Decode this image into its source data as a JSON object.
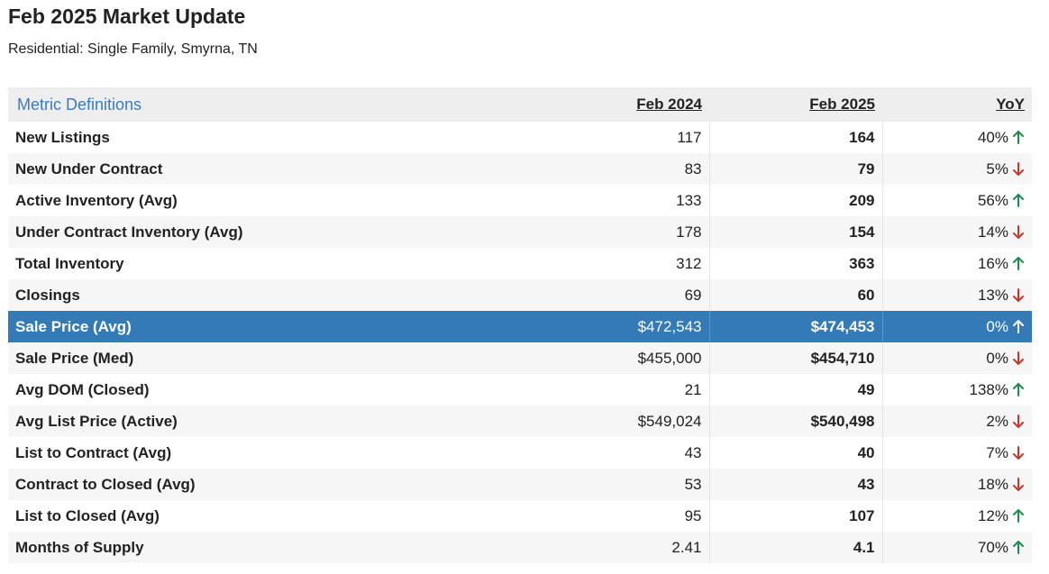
{
  "header": {
    "title": "Feb 2025 Market Update",
    "subtitle": "Residential: Single Family, Smyrna, TN"
  },
  "colors": {
    "up": "#1e8a4c",
    "down": "#c0392b",
    "highlight": "#337ab7",
    "link": "#3a7cc0"
  },
  "table": {
    "metric_definitions_label": "Metric Definitions",
    "columns": [
      "Feb 2024",
      "Feb 2025",
      "YoY"
    ],
    "rows": [
      {
        "metric": "New Listings",
        "prev": "117",
        "curr": "164",
        "yoy": "40%",
        "dir": "up"
      },
      {
        "metric": "New Under Contract",
        "prev": "83",
        "curr": "79",
        "yoy": "5%",
        "dir": "down"
      },
      {
        "metric": "Active Inventory (Avg)",
        "prev": "133",
        "curr": "209",
        "yoy": "56%",
        "dir": "up"
      },
      {
        "metric": "Under Contract Inventory (Avg)",
        "prev": "178",
        "curr": "154",
        "yoy": "14%",
        "dir": "down"
      },
      {
        "metric": "Total Inventory",
        "prev": "312",
        "curr": "363",
        "yoy": "16%",
        "dir": "up"
      },
      {
        "metric": "Closings",
        "prev": "69",
        "curr": "60",
        "yoy": "13%",
        "dir": "down"
      },
      {
        "metric": "Sale Price (Avg)",
        "prev": "$472,543",
        "curr": "$474,453",
        "yoy": "0%",
        "dir": "up",
        "highlight": true
      },
      {
        "metric": "Sale Price (Med)",
        "prev": "$455,000",
        "curr": "$454,710",
        "yoy": "0%",
        "dir": "down"
      },
      {
        "metric": "Avg DOM (Closed)",
        "prev": "21",
        "curr": "49",
        "yoy": "138%",
        "dir": "up"
      },
      {
        "metric": "Avg List Price (Active)",
        "prev": "$549,024",
        "curr": "$540,498",
        "yoy": "2%",
        "dir": "down"
      },
      {
        "metric": "List to Contract (Avg)",
        "prev": "43",
        "curr": "40",
        "yoy": "7%",
        "dir": "down"
      },
      {
        "metric": "Contract to Closed (Avg)",
        "prev": "53",
        "curr": "43",
        "yoy": "18%",
        "dir": "down"
      },
      {
        "metric": "List to Closed (Avg)",
        "prev": "95",
        "curr": "107",
        "yoy": "12%",
        "dir": "up"
      },
      {
        "metric": "Months of Supply",
        "prev": "2.41",
        "curr": "4.1",
        "yoy": "70%",
        "dir": "up"
      }
    ]
  }
}
